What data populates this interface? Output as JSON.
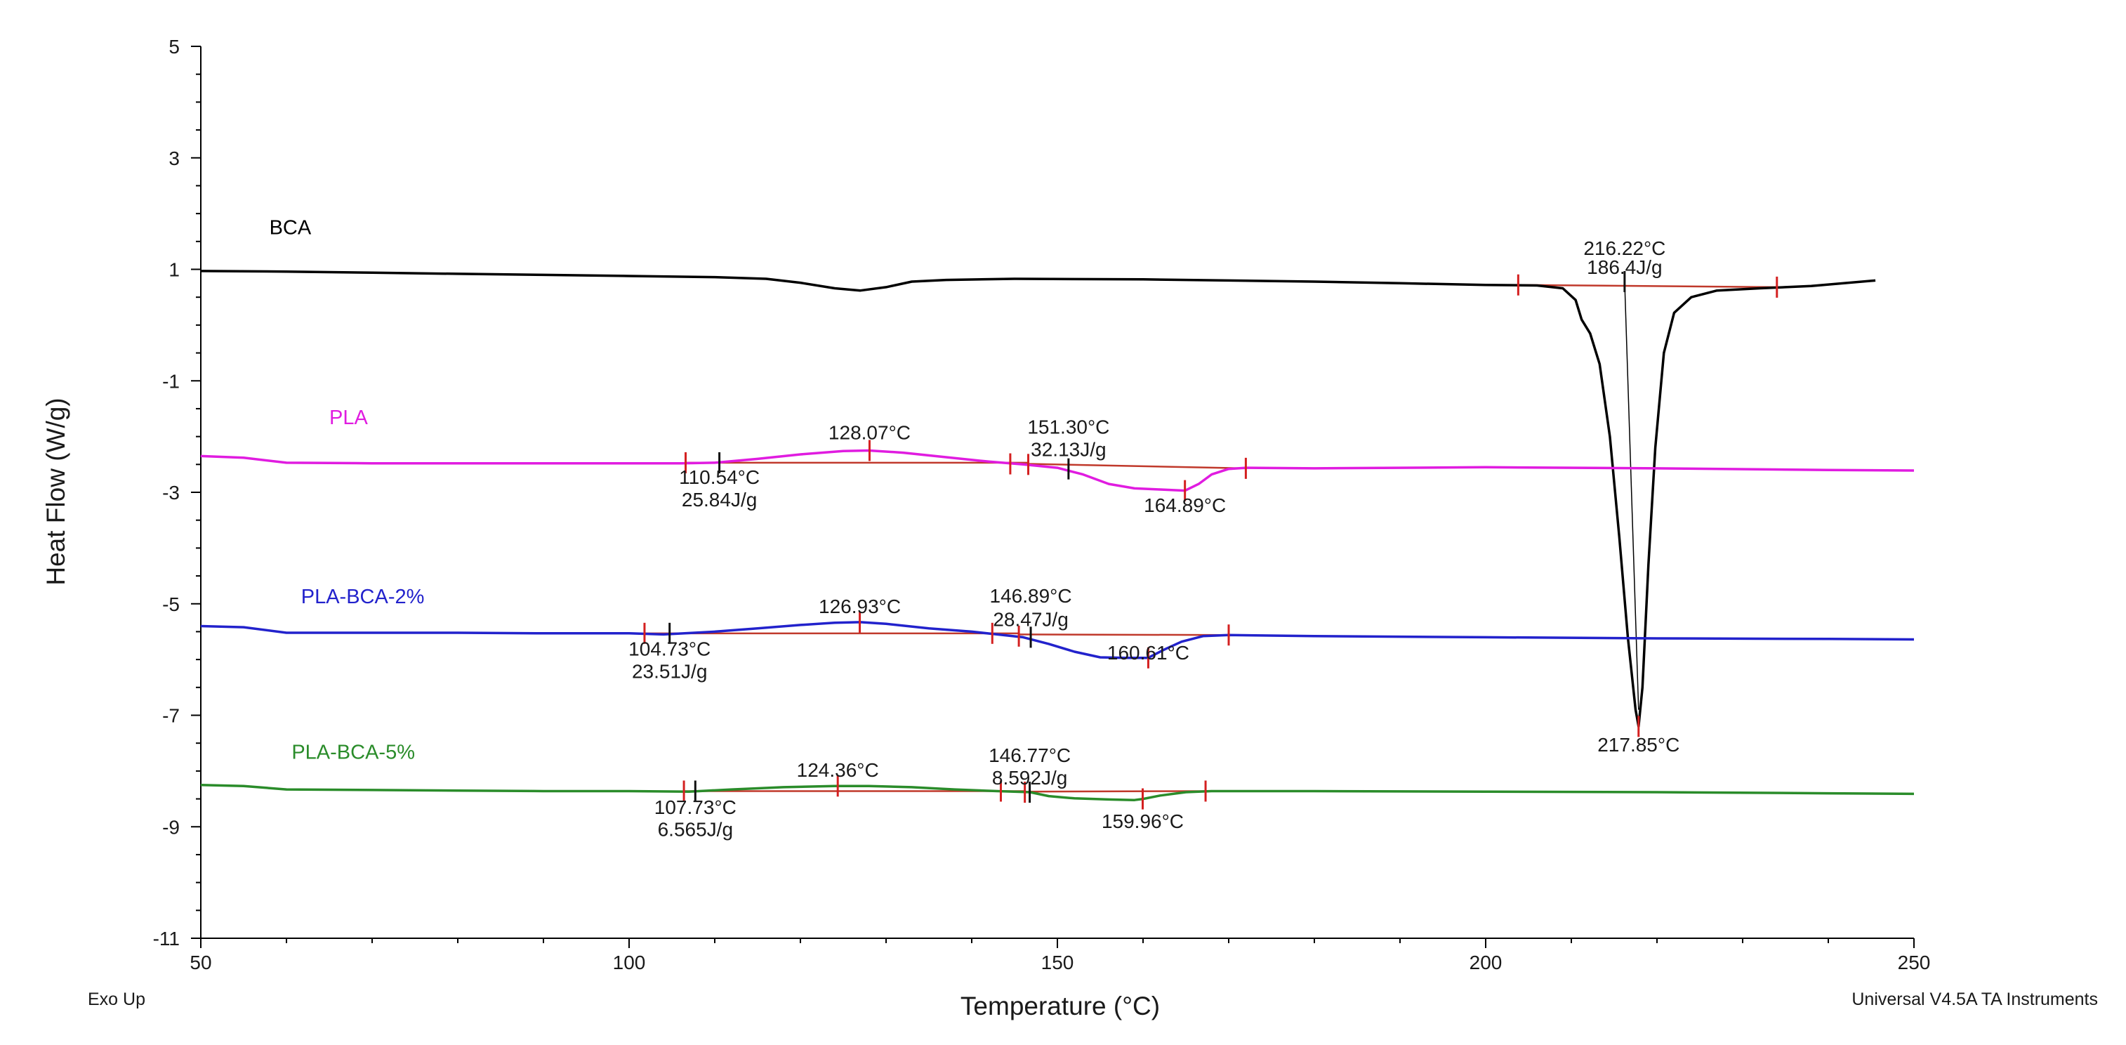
{
  "chart_data": {
    "type": "line",
    "xlabel": "Temperature (°C)",
    "ylabel": "Heat Flow (W/g)",
    "xlim": [
      50,
      250
    ],
    "ylim": [
      -11,
      5
    ],
    "x_ticks": [
      "50",
      "100",
      "150",
      "200",
      "250"
    ],
    "y_ticks": [
      "5",
      "3",
      "1",
      "-1",
      "-3",
      "-5",
      "-7",
      "-9",
      "-11"
    ],
    "footer_left": "Exo Up",
    "footer_right": "Universal V4.5A TA Instruments",
    "series": [
      {
        "name": "BCA",
        "color": "#000000",
        "points": [
          [
            50,
            0.97
          ],
          [
            60,
            0.96
          ],
          [
            70,
            0.94
          ],
          [
            80,
            0.92
          ],
          [
            90,
            0.9
          ],
          [
            100,
            0.88
          ],
          [
            110,
            0.86
          ],
          [
            116,
            0.83
          ],
          [
            120,
            0.76
          ],
          [
            124,
            0.66
          ],
          [
            127,
            0.62
          ],
          [
            130,
            0.68
          ],
          [
            133,
            0.78
          ],
          [
            137,
            0.81
          ],
          [
            145,
            0.83
          ],
          [
            160,
            0.82
          ],
          [
            170,
            0.8
          ],
          [
            180,
            0.78
          ],
          [
            190,
            0.75
          ],
          [
            200,
            0.72
          ],
          [
            206,
            0.71
          ],
          [
            209,
            0.66
          ],
          [
            210.5,
            0.45
          ],
          [
            211.2,
            0.1
          ],
          [
            212.2,
            -0.15
          ],
          [
            213.3,
            -0.7
          ],
          [
            214.5,
            -2.0
          ],
          [
            215.6,
            -3.8
          ],
          [
            216.6,
            -5.6
          ],
          [
            217.5,
            -6.9
          ],
          [
            217.85,
            -7.2
          ],
          [
            218.3,
            -6.5
          ],
          [
            219.0,
            -4.3
          ],
          [
            219.8,
            -2.2
          ],
          [
            220.8,
            -0.5
          ],
          [
            222,
            0.22
          ],
          [
            224,
            0.5
          ],
          [
            227,
            0.62
          ],
          [
            232,
            0.66
          ],
          [
            238,
            0.7
          ],
          [
            245.5,
            0.8
          ]
        ],
        "labels": [
          {
            "text": "216.22°C",
            "x": 216.22,
            "y": 1.26
          },
          {
            "text": "186.4J/g",
            "x": 216.22,
            "y": 0.92
          },
          {
            "text": "217.85°C",
            "x": 217.85,
            "y": -7.65
          }
        ]
      },
      {
        "name": "PLA",
        "color": "#e01ce0",
        "points": [
          [
            50,
            -2.35
          ],
          [
            55,
            -2.38
          ],
          [
            60,
            -2.47
          ],
          [
            70,
            -2.48
          ],
          [
            80,
            -2.48
          ],
          [
            90,
            -2.48
          ],
          [
            100,
            -2.48
          ],
          [
            106,
            -2.48
          ],
          [
            110,
            -2.47
          ],
          [
            115,
            -2.4
          ],
          [
            120,
            -2.32
          ],
          [
            125,
            -2.26
          ],
          [
            128,
            -2.25
          ],
          [
            132,
            -2.29
          ],
          [
            137,
            -2.37
          ],
          [
            142,
            -2.45
          ],
          [
            146,
            -2.5
          ],
          [
            150,
            -2.56
          ],
          [
            153,
            -2.68
          ],
          [
            156,
            -2.85
          ],
          [
            159,
            -2.93
          ],
          [
            162,
            -2.95
          ],
          [
            164.9,
            -2.97
          ],
          [
            166.5,
            -2.85
          ],
          [
            168,
            -2.68
          ],
          [
            170,
            -2.58
          ],
          [
            172,
            -2.56
          ],
          [
            180,
            -2.57
          ],
          [
            200,
            -2.55
          ],
          [
            220,
            -2.57
          ],
          [
            240,
            -2.6
          ],
          [
            250,
            -2.61
          ]
        ],
        "labels": [
          {
            "text": "128.07°C",
            "x": 128.07,
            "y": -2.05
          },
          {
            "text": "151.30°C",
            "x": 151.3,
            "y": -1.95
          },
          {
            "text": "32.13J/g",
            "x": 151.3,
            "y": -2.35
          },
          {
            "text": "110.54°C",
            "x": 110.54,
            "y": -2.85
          },
          {
            "text": "25.84J/g",
            "x": 110.54,
            "y": -3.25
          },
          {
            "text": "164.89°C",
            "x": 164.89,
            "y": -3.35
          }
        ]
      },
      {
        "name": "PLA-BCA-2%",
        "color": "#2222cc",
        "points": [
          [
            50,
            -5.4
          ],
          [
            55,
            -5.42
          ],
          [
            60,
            -5.52
          ],
          [
            70,
            -5.52
          ],
          [
            80,
            -5.52
          ],
          [
            90,
            -5.53
          ],
          [
            100,
            -5.53
          ],
          [
            104,
            -5.55
          ],
          [
            110,
            -5.5
          ],
          [
            115,
            -5.44
          ],
          [
            120,
            -5.38
          ],
          [
            124,
            -5.34
          ],
          [
            127,
            -5.33
          ],
          [
            130,
            -5.36
          ],
          [
            135,
            -5.44
          ],
          [
            140,
            -5.5
          ],
          [
            143,
            -5.55
          ],
          [
            146,
            -5.6
          ],
          [
            149,
            -5.72
          ],
          [
            152,
            -5.86
          ],
          [
            155,
            -5.96
          ],
          [
            158,
            -5.97
          ],
          [
            160.6,
            -5.97
          ],
          [
            162.5,
            -5.82
          ],
          [
            164.5,
            -5.68
          ],
          [
            167,
            -5.58
          ],
          [
            170,
            -5.56
          ],
          [
            180,
            -5.58
          ],
          [
            200,
            -5.6
          ],
          [
            220,
            -5.62
          ],
          [
            240,
            -5.63
          ],
          [
            250,
            -5.64
          ]
        ],
        "labels": [
          {
            "text": "126.93°C",
            "x": 126.93,
            "y": -5.17
          },
          {
            "text": "146.89°C",
            "x": 146.89,
            "y": -4.98
          },
          {
            "text": "28.47J/g",
            "x": 146.89,
            "y": -5.4
          },
          {
            "text": "104.73°C",
            "x": 104.73,
            "y": -5.93
          },
          {
            "text": "23.51J/g",
            "x": 104.73,
            "y": -6.33
          },
          {
            "text": "160.61°C",
            "x": 160.61,
            "y": -6.0
          }
        ]
      },
      {
        "name": "PLA-BCA-5%",
        "color": "#2a8c2a",
        "points": [
          [
            50,
            -8.25
          ],
          [
            55,
            -8.27
          ],
          [
            60,
            -8.33
          ],
          [
            70,
            -8.34
          ],
          [
            80,
            -8.35
          ],
          [
            90,
            -8.36
          ],
          [
            100,
            -8.36
          ],
          [
            107,
            -8.37
          ],
          [
            112,
            -8.33
          ],
          [
            118,
            -8.29
          ],
          [
            124,
            -8.27
          ],
          [
            128,
            -8.27
          ],
          [
            133,
            -8.29
          ],
          [
            138,
            -8.33
          ],
          [
            143,
            -8.36
          ],
          [
            146.8,
            -8.38
          ],
          [
            149,
            -8.45
          ],
          [
            152,
            -8.49
          ],
          [
            156,
            -8.51
          ],
          [
            159,
            -8.52
          ],
          [
            160,
            -8.5
          ],
          [
            162,
            -8.44
          ],
          [
            165,
            -8.38
          ],
          [
            168,
            -8.36
          ],
          [
            180,
            -8.36
          ],
          [
            200,
            -8.37
          ],
          [
            220,
            -8.38
          ],
          [
            240,
            -8.4
          ],
          [
            250,
            -8.41
          ]
        ],
        "labels": [
          {
            "text": "124.36°C",
            "x": 124.36,
            "y": -8.1
          },
          {
            "text": "146.77°C",
            "x": 146.77,
            "y": -7.84
          },
          {
            "text": "8.592J/g",
            "x": 146.77,
            "y": -8.24
          },
          {
            "text": "107.73°C",
            "x": 107.73,
            "y": -8.77
          },
          {
            "text": "6.565J/g",
            "x": 107.73,
            "y": -9.17
          },
          {
            "text": "159.96°C",
            "x": 159.96,
            "y": -9.02
          }
        ]
      }
    ],
    "baselines": [
      {
        "color": "#c0392b",
        "x": [
          203.8,
          234.0
        ],
        "y": [
          0.72,
          0.68
        ]
      },
      {
        "color": "#c0392b",
        "x": [
          106.6,
          146.6
        ],
        "y": [
          -2.47,
          -2.47
        ]
      },
      {
        "color": "#c0392b",
        "x": [
          146.6,
          172.0
        ],
        "y": [
          -2.49,
          -2.57
        ]
      },
      {
        "color": "#c0392b",
        "x": [
          101.8,
          145.5
        ],
        "y": [
          -5.53,
          -5.53
        ]
      },
      {
        "color": "#c0392b",
        "x": [
          145.5,
          170.0
        ],
        "y": [
          -5.55,
          -5.56
        ]
      },
      {
        "color": "#c0392b",
        "x": [
          106.4,
          146.2
        ],
        "y": [
          -8.36,
          -8.36
        ]
      },
      {
        "color": "#c0392b",
        "x": [
          146.2,
          167.3
        ],
        "y": [
          -8.37,
          -8.36
        ]
      }
    ],
    "red_markers": [
      {
        "x": 203.8,
        "y": 0.72
      },
      {
        "x": 234.0,
        "y": 0.68
      },
      {
        "x": 217.85,
        "y": -7.2
      },
      {
        "x": 106.6,
        "y": -2.47
      },
      {
        "x": 128.07,
        "y": -2.25
      },
      {
        "x": 144.5,
        "y": -2.49
      },
      {
        "x": 146.6,
        "y": -2.5
      },
      {
        "x": 164.89,
        "y": -2.97
      },
      {
        "x": 172.0,
        "y": -2.57
      },
      {
        "x": 101.8,
        "y": -5.53
      },
      {
        "x": 126.93,
        "y": -5.33
      },
      {
        "x": 142.4,
        "y": -5.53
      },
      {
        "x": 145.5,
        "y": -5.58
      },
      {
        "x": 160.61,
        "y": -5.97
      },
      {
        "x": 170.0,
        "y": -5.56
      },
      {
        "x": 106.4,
        "y": -8.36
      },
      {
        "x": 124.36,
        "y": -8.27
      },
      {
        "x": 143.4,
        "y": -8.36
      },
      {
        "x": 146.2,
        "y": -8.38
      },
      {
        "x": 159.96,
        "y": -8.5
      },
      {
        "x": 167.3,
        "y": -8.36
      }
    ],
    "black_markers": [
      {
        "x": 216.22,
        "y": 0.78
      },
      {
        "x": 110.54,
        "y": -2.47
      },
      {
        "x": 151.3,
        "y": -2.58
      },
      {
        "x": 104.73,
        "y": -5.53
      },
      {
        "x": 146.89,
        "y": -5.6
      },
      {
        "x": 107.73,
        "y": -8.36
      },
      {
        "x": 146.77,
        "y": -8.38
      }
    ],
    "integration_lines": [
      {
        "x1": 216.22,
        "y1": 0.8,
        "x2": 217.85,
        "y2": -6.9
      }
    ]
  }
}
